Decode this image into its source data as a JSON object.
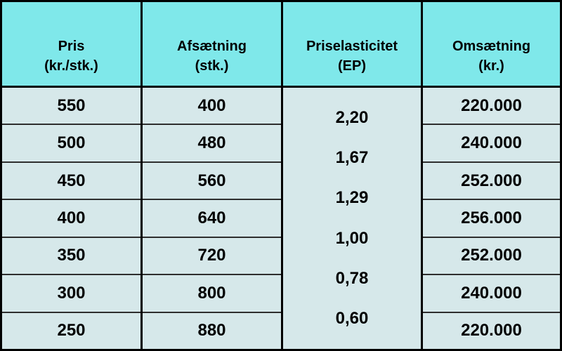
{
  "colors": {
    "header_bg": "#7fe8ea",
    "body_bg": "#d6e8ea",
    "outer_border": "#000000",
    "row_divider": "#2e2e2e",
    "text": "#000000"
  },
  "table": {
    "headers": [
      {
        "line1": "Pris",
        "line2": "(kr./stk.)"
      },
      {
        "line1": "Afsætning",
        "line2": "(stk.)"
      },
      {
        "line1": "Priselasticitet",
        "line2": "(EP)"
      },
      {
        "line1": "Omsætning",
        "line2": "(kr.)"
      }
    ],
    "pris": [
      "550",
      "500",
      "450",
      "400",
      "350",
      "300",
      "250"
    ],
    "afsaetning": [
      "400",
      "480",
      "560",
      "640",
      "720",
      "800",
      "880"
    ],
    "priselasticitet": [
      "2,20",
      "1,67",
      "1,29",
      "1,00",
      "0,78",
      "0,60"
    ],
    "omsaetning": [
      "220.000",
      "240.000",
      "252.000",
      "256.000",
      "252.000",
      "240.000",
      "220.000"
    ]
  },
  "chart_data": {
    "type": "table",
    "title": "",
    "columns": [
      "Pris (kr./stk.)",
      "Afsætning (stk.)",
      "Priselasticitet (EP)",
      "Omsætning (kr.)"
    ],
    "rows": [
      {
        "pris": 550,
        "afsaetning": 400,
        "omsaetning": 220000
      },
      {
        "pris": 500,
        "afsaetning": 480,
        "omsaetning": 240000
      },
      {
        "pris": 450,
        "afsaetning": 560,
        "omsaetning": 252000
      },
      {
        "pris": 400,
        "afsaetning": 640,
        "omsaetning": 256000
      },
      {
        "pris": 350,
        "afsaetning": 720,
        "omsaetning": 252000
      },
      {
        "pris": 300,
        "afsaetning": 800,
        "omsaetning": 240000
      },
      {
        "pris": 250,
        "afsaetning": 880,
        "omsaetning": 220000
      }
    ],
    "priselasticitet_between_rows": [
      2.2,
      1.67,
      1.29,
      1.0,
      0.78,
      0.6
    ],
    "layout_hints": {
      "ep_column_merged": true,
      "ep_values_positioned_between_consecutive_rows": true,
      "header_row_highlighted": true
    }
  }
}
